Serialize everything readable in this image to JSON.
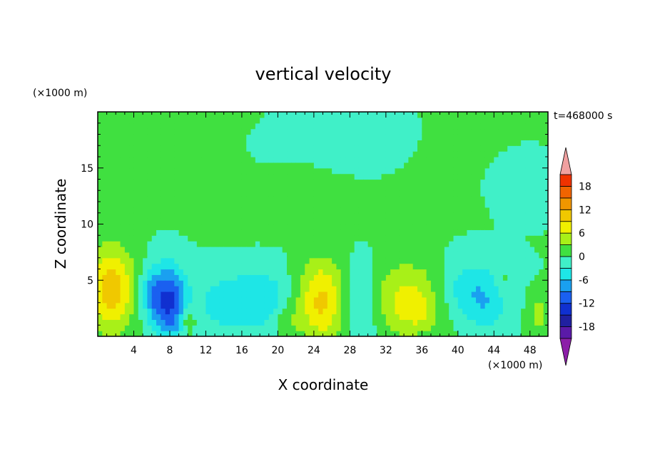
{
  "chart_data": {
    "type": "heatmap",
    "title": "vertical velocity",
    "time_label": "t=468000 s",
    "xlabel": "X coordinate",
    "ylabel": "Z coordinate",
    "x_unit": "(×1000 m)",
    "y_unit": "(×1000 m)",
    "xlim": [
      0,
      50
    ],
    "ylim": [
      0,
      20
    ],
    "x_ticks": [
      "4",
      "8",
      "12",
      "16",
      "20",
      "24",
      "28",
      "32",
      "36",
      "40",
      "44",
      "48"
    ],
    "y_ticks": [
      "5",
      "10",
      "15"
    ],
    "colorbar": {
      "levels": [
        -21,
        -18,
        -15,
        -12,
        -9,
        -6,
        -3,
        0,
        3,
        6,
        9,
        12,
        15,
        18,
        21
      ],
      "tick_labels": [
        "18",
        "12",
        "6",
        "0",
        "-6",
        "-12",
        "-18"
      ],
      "colors": [
        "#8c1fa8",
        "#5a1aa8",
        "#2020a0",
        "#1030d0",
        "#1a60f0",
        "#1aa0f0",
        "#1ee6e6",
        "#40f0c8",
        "#40e040",
        "#a8f018",
        "#f0f000",
        "#f0c800",
        "#f09600",
        "#f06400",
        "#f03200",
        "#e01010",
        "#f0a0a0"
      ],
      "extend": "both"
    },
    "features": [
      {
        "x": 1.5,
        "z": 4.2,
        "sx": 1.8,
        "sz": 2.6,
        "amp": 11
      },
      {
        "x": 8,
        "z": 3.0,
        "sx": 1.3,
        "sz": 2.3,
        "amp": -12
      },
      {
        "x": 6,
        "z": 3.8,
        "sx": 1.0,
        "sz": 1.5,
        "amp": -6
      },
      {
        "x": 10,
        "z": 1.5,
        "sx": 0.6,
        "sz": 1.0,
        "amp": 5
      },
      {
        "x": 15,
        "z": 3.0,
        "sx": 3.0,
        "sz": 2.0,
        "amp": -5
      },
      {
        "x": 19,
        "z": 3.5,
        "sx": 2.0,
        "sz": 2.0,
        "amp": -3
      },
      {
        "x": 25,
        "z": 3.2,
        "sx": 2.0,
        "sz": 2.6,
        "amp": 10
      },
      {
        "x": 29,
        "z": 3.0,
        "sx": 1.7,
        "sz": 2.5,
        "amp": -6
      },
      {
        "x": 34.5,
        "z": 3.3,
        "sx": 3.5,
        "sz": 2.4,
        "amp": 7
      },
      {
        "x": 35.5,
        "z": 2.2,
        "sx": 1.2,
        "sz": 0.8,
        "amp": 3
      },
      {
        "x": 41,
        "z": 4.0,
        "sx": 2.5,
        "sz": 2.0,
        "amp": -6
      },
      {
        "x": 43.5,
        "z": 2.5,
        "sx": 1.5,
        "sz": 1.8,
        "amp": -3
      },
      {
        "x": 49,
        "z": 2.0,
        "sx": 0.8,
        "sz": 1.2,
        "amp": 4
      },
      {
        "x": 45,
        "z": 5.0,
        "sx": 0.6,
        "sz": 0.8,
        "amp": 2
      },
      {
        "x": 21,
        "z": 1.5,
        "sx": 1.0,
        "sz": 0.9,
        "amp": 3
      },
      {
        "x": 13,
        "z": 15.0,
        "sx": 5.0,
        "sz": 3.0,
        "amp": 1.2
      },
      {
        "x": 22,
        "z": 12.0,
        "sx": 6.0,
        "sz": 2.0,
        "amp": 1.4
      },
      {
        "x": 40,
        "z": 15.0,
        "sx": 6.0,
        "sz": 3.0,
        "amp": 1.0
      },
      {
        "x": 30,
        "z": 17.0,
        "sx": 4.0,
        "sz": 2.0,
        "amp": -1.6
      },
      {
        "x": 18,
        "z": 16.0,
        "sx": 3.0,
        "sz": 2.0,
        "amp": -1.0
      },
      {
        "x": 46,
        "z": 14.0,
        "sx": 3.0,
        "sz": 2.0,
        "amp": -1.5
      }
    ]
  }
}
